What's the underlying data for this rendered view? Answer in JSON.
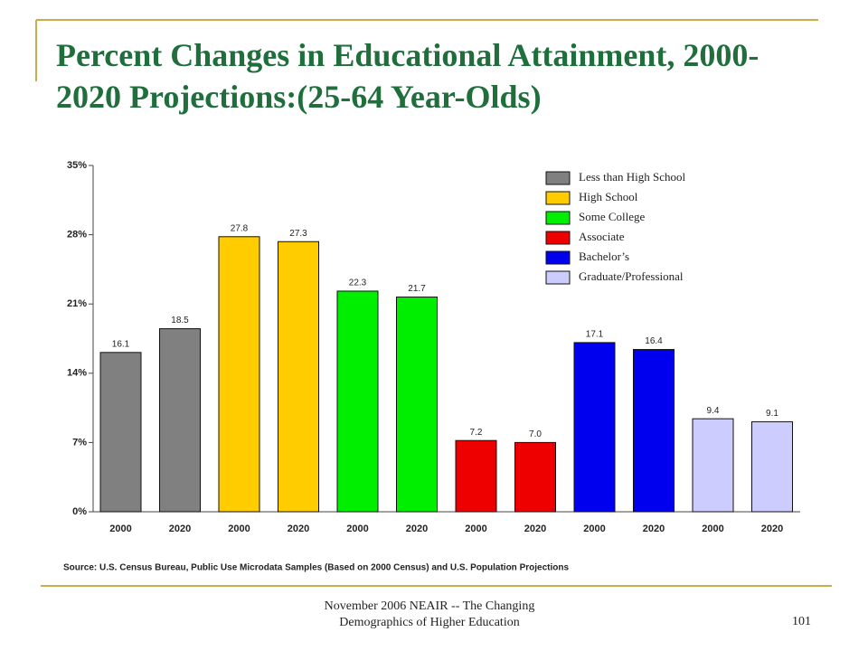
{
  "chart_data": {
    "type": "bar",
    "title": "Percent Changes in Educational Attainment, 2000-2020 Projections:(25-64 Year-Olds)",
    "categories": [
      "2000",
      "2020"
    ],
    "series": [
      {
        "name": "Less than High School",
        "color": "#808080",
        "values": [
          16.1,
          18.5
        ],
        "value_labels": [
          "16.1",
          "18.5"
        ]
      },
      {
        "name": "High School",
        "color": "#ffcc00",
        "values": [
          27.8,
          27.3
        ],
        "value_labels": [
          "27.8",
          "27.3"
        ]
      },
      {
        "name": "Some College",
        "color": "#00ee00",
        "values": [
          22.3,
          21.7
        ],
        "value_labels": [
          "22.3",
          "21.7"
        ]
      },
      {
        "name": "Associate",
        "color": "#ee0000",
        "values": [
          7.2,
          7.0
        ],
        "value_labels": [
          "7.2",
          "7.0"
        ]
      },
      {
        "name": "Bachelor’s",
        "color": "#0000ee",
        "values": [
          17.1,
          16.4
        ],
        "value_labels": [
          "17.1",
          "16.4"
        ]
      },
      {
        "name": "Graduate/Professional",
        "color": "#ccccff",
        "values": [
          9.4,
          9.1
        ],
        "value_labels": [
          "9.4",
          "9.1"
        ]
      }
    ],
    "ylim": [
      0,
      35
    ],
    "yticks": [
      {
        "value": 0,
        "label": "0%"
      },
      {
        "value": 7,
        "label": "7%"
      },
      {
        "value": 14,
        "label": "14%"
      },
      {
        "value": 21,
        "label": "21%"
      },
      {
        "value": 28,
        "label": "28%"
      },
      {
        "value": 35,
        "label": "35%"
      }
    ],
    "legend": "top-right",
    "source": "Source:  U.S. Census Bureau, Public Use Microdata Samples (Based on 2000 Census) and U.S. Population Projections"
  },
  "footer": {
    "text": "November 2006 NEAIR -- The Changing Demographics of Higher Education",
    "page_number": "101"
  }
}
